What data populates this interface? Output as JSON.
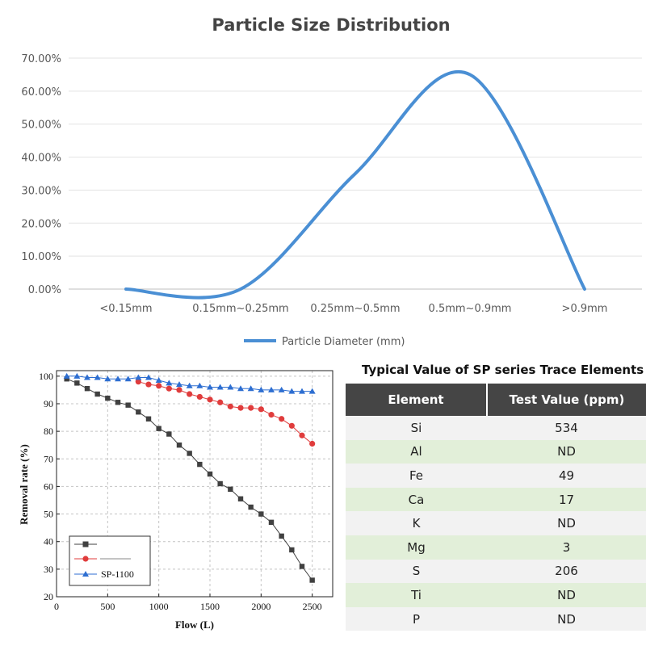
{
  "chart_data": [
    {
      "type": "line",
      "title": "Particle Size Distribution",
      "categories": [
        "<0.15mm",
        "0.15mm~0.25mm",
        "0.25mm~0.5mm",
        "0.5mm~0.9mm",
        ">0.9mm"
      ],
      "y_tick_labels": [
        "0.00%",
        "10.00%",
        "20.00%",
        "30.00%",
        "40.00%",
        "50.00%",
        "60.00%",
        "70.00%"
      ],
      "ylim": [
        0,
        70
      ],
      "series": [
        {
          "name": "Particle Diameter (mm)",
          "values": [
            0,
            0,
            35,
            65,
            0
          ],
          "color": "#4a8fd4"
        }
      ],
      "smooth": true,
      "grid": "horizontal",
      "legend_position": "bottom"
    },
    {
      "type": "line",
      "xlabel": "Flow (L)",
      "ylabel": "Removal rate (%)",
      "xlim": [
        0,
        2700
      ],
      "ylim": [
        20,
        102
      ],
      "x_ticks": [
        0,
        500,
        1000,
        1500,
        2000,
        2500
      ],
      "y_ticks": [
        20,
        30,
        40,
        50,
        60,
        70,
        80,
        90,
        100
      ],
      "grid": "dashed",
      "legend_position": "bottom-left",
      "series": [
        {
          "name": "",
          "marker": "square",
          "color": "#404040",
          "x": [
            100,
            200,
            300,
            400,
            500,
            600,
            700,
            800,
            900,
            1000,
            1100,
            1200,
            1300,
            1400,
            1500,
            1600,
            1700,
            1800,
            1900,
            2000,
            2100,
            2200,
            2300,
            2400,
            2500
          ],
          "y": [
            99,
            97.5,
            95.5,
            93.5,
            92,
            90.5,
            89.5,
            87,
            84.5,
            81,
            79,
            75,
            72,
            68,
            64.5,
            61,
            59,
            55.5,
            52.5,
            50,
            47,
            42,
            37,
            31,
            26
          ]
        },
        {
          "name": "",
          "marker": "circle",
          "color": "#e03c3c",
          "x": [
            800,
            900,
            1000,
            1100,
            1200,
            1300,
            1400,
            1500,
            1600,
            1700,
            1800,
            1900,
            2000,
            2100,
            2200,
            2300,
            2400,
            2500
          ],
          "y": [
            98,
            97,
            96.5,
            95.5,
            95,
            93.5,
            92.5,
            91.5,
            90.5,
            89,
            88.5,
            88.5,
            88,
            86,
            84.5,
            82,
            78.5,
            75.5
          ]
        },
        {
          "name": "SP-1100",
          "marker": "triangle",
          "color": "#2d6ed1",
          "x": [
            100,
            200,
            300,
            400,
            500,
            600,
            700,
            800,
            900,
            1000,
            1100,
            1200,
            1300,
            1400,
            1500,
            1600,
            1700,
            1800,
            1900,
            2000,
            2100,
            2200,
            2300,
            2400,
            2500
          ],
          "y": [
            100,
            100,
            99.5,
            99.5,
            99,
            99,
            99,
            99.5,
            99.5,
            98.5,
            97.5,
            97,
            96.5,
            96.5,
            96,
            96,
            96,
            95.5,
            95.5,
            95,
            95,
            95,
            94.5,
            94.5,
            94.5
          ]
        }
      ]
    },
    {
      "type": "table",
      "title": "Typical Value of SP series Trace Elements",
      "columns": [
        "Element",
        "Test Value (ppm)"
      ],
      "rows": [
        [
          "Si",
          "534"
        ],
        [
          "Al",
          "ND"
        ],
        [
          "Fe",
          "49"
        ],
        [
          "Ca",
          "17"
        ],
        [
          "K",
          "ND"
        ],
        [
          "Mg",
          "3"
        ],
        [
          "S",
          "206"
        ],
        [
          "Ti",
          "ND"
        ],
        [
          "P",
          "ND"
        ]
      ],
      "header_color": "#454545",
      "row_colors": [
        "#f2f2f2",
        "#e2efd9"
      ]
    }
  ]
}
